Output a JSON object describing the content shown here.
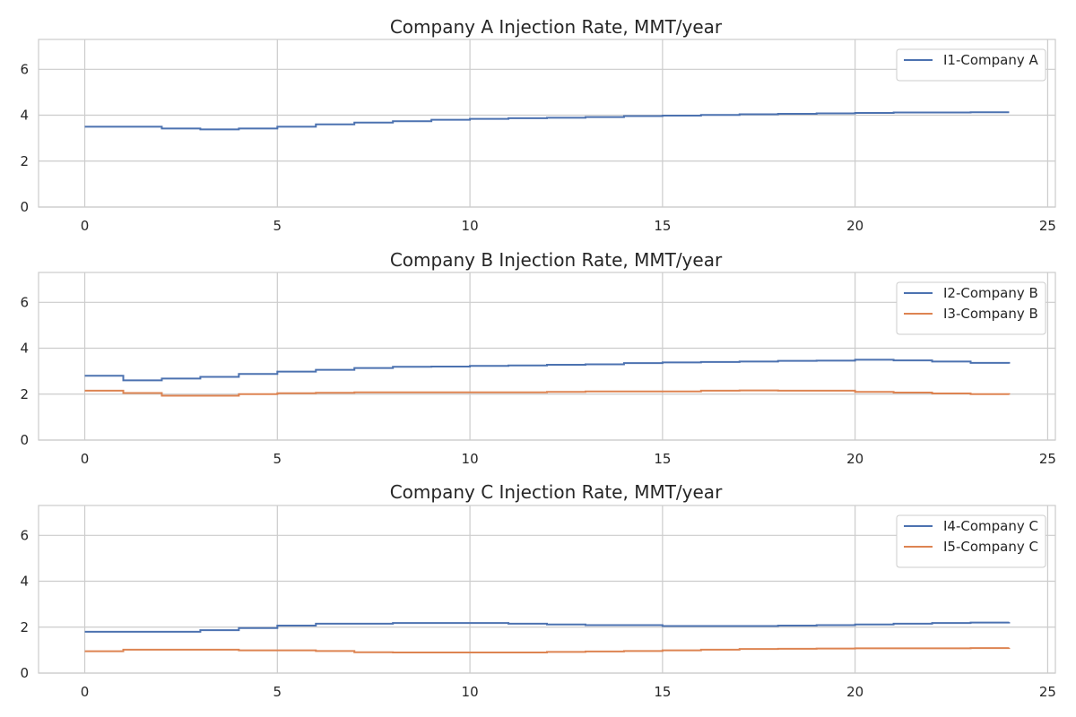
{
  "chart_data": [
    {
      "type": "line",
      "title": "Company A Injection Rate, MMT/year",
      "xlim": [
        -1.2,
        25.2
      ],
      "ylim": [
        0,
        7.3
      ],
      "xticks": [
        0,
        5,
        10,
        15,
        20,
        25
      ],
      "yticks": [
        0,
        2,
        4,
        6
      ],
      "grid": true,
      "legend": "top-right",
      "series": [
        {
          "name": "I1-Company A",
          "color": "#4c72b0",
          "x": [
            0,
            1,
            2,
            3,
            4,
            5,
            6,
            7,
            8,
            9,
            10,
            11,
            12,
            13,
            14,
            15,
            16,
            17,
            18,
            19,
            20,
            21,
            22,
            23,
            24
          ],
          "values": [
            3.5,
            3.5,
            3.42,
            3.38,
            3.42,
            3.5,
            3.6,
            3.68,
            3.74,
            3.8,
            3.84,
            3.87,
            3.89,
            3.92,
            3.96,
            3.98,
            4.01,
            4.04,
            4.06,
            4.08,
            4.1,
            4.12,
            4.12,
            4.13,
            4.13
          ]
        }
      ]
    },
    {
      "type": "line",
      "title": "Company B Injection Rate, MMT/year",
      "xlim": [
        -1.2,
        25.2
      ],
      "ylim": [
        0,
        7.3
      ],
      "xticks": [
        0,
        5,
        10,
        15,
        20,
        25
      ],
      "yticks": [
        0,
        2,
        4,
        6
      ],
      "grid": true,
      "legend": "top-right",
      "series": [
        {
          "name": "I2-Company B",
          "color": "#4c72b0",
          "x": [
            0,
            1,
            2,
            3,
            4,
            5,
            6,
            7,
            8,
            9,
            10,
            11,
            12,
            13,
            14,
            15,
            16,
            17,
            18,
            19,
            20,
            21,
            22,
            23,
            24
          ],
          "values": [
            2.8,
            2.6,
            2.68,
            2.75,
            2.88,
            2.98,
            3.06,
            3.14,
            3.19,
            3.2,
            3.23,
            3.25,
            3.28,
            3.3,
            3.35,
            3.38,
            3.4,
            3.42,
            3.45,
            3.46,
            3.5,
            3.47,
            3.42,
            3.36,
            3.33
          ]
        },
        {
          "name": "I3-Company B",
          "color": "#dd8452",
          "x": [
            0,
            1,
            2,
            3,
            4,
            5,
            6,
            7,
            8,
            9,
            10,
            11,
            12,
            13,
            14,
            15,
            16,
            17,
            18,
            19,
            20,
            21,
            22,
            23,
            24
          ],
          "values": [
            2.15,
            2.05,
            1.93,
            1.93,
            2.0,
            2.04,
            2.06,
            2.08,
            2.08,
            2.08,
            2.08,
            2.08,
            2.1,
            2.12,
            2.12,
            2.12,
            2.15,
            2.16,
            2.15,
            2.15,
            2.1,
            2.07,
            2.03,
            2.0,
            1.98
          ]
        }
      ]
    },
    {
      "type": "line",
      "title": "Company C Injection Rate, MMT/year",
      "xlim": [
        -1.2,
        25.2
      ],
      "ylim": [
        0,
        7.3
      ],
      "xticks": [
        0,
        5,
        10,
        15,
        20,
        25
      ],
      "yticks": [
        0,
        2,
        4,
        6
      ],
      "grid": true,
      "legend": "top-right",
      "series": [
        {
          "name": "I4-Company C",
          "color": "#4c72b0",
          "x": [
            0,
            1,
            2,
            3,
            4,
            5,
            6,
            7,
            8,
            9,
            10,
            11,
            12,
            13,
            14,
            15,
            16,
            17,
            18,
            19,
            20,
            21,
            22,
            23,
            24
          ],
          "values": [
            1.8,
            1.8,
            1.8,
            1.87,
            1.96,
            2.07,
            2.15,
            2.15,
            2.18,
            2.18,
            2.18,
            2.15,
            2.12,
            2.09,
            2.09,
            2.05,
            2.05,
            2.05,
            2.07,
            2.09,
            2.12,
            2.15,
            2.18,
            2.2,
            2.22
          ]
        },
        {
          "name": "I5-Company C",
          "color": "#dd8452",
          "x": [
            0,
            1,
            2,
            3,
            4,
            5,
            6,
            7,
            8,
            9,
            10,
            11,
            12,
            13,
            14,
            15,
            16,
            17,
            18,
            19,
            20,
            21,
            22,
            23,
            24
          ],
          "values": [
            0.95,
            1.02,
            1.02,
            1.02,
            0.99,
            0.99,
            0.96,
            0.91,
            0.9,
            0.9,
            0.9,
            0.9,
            0.92,
            0.94,
            0.96,
            0.99,
            1.02,
            1.05,
            1.06,
            1.07,
            1.08,
            1.08,
            1.08,
            1.09,
            1.1
          ]
        }
      ]
    }
  ]
}
